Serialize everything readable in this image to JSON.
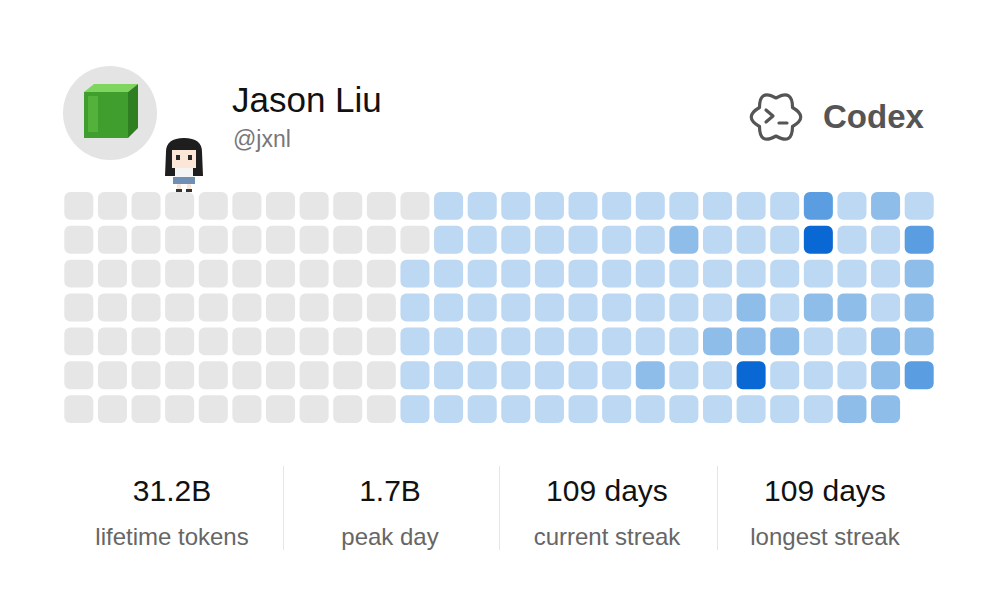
{
  "profile": {
    "name": "Jason Liu",
    "handle": "@jxnl"
  },
  "brand": "Codex",
  "chart_data": {
    "type": "heatmap",
    "tick_labels": false,
    "grid": false,
    "cells": [
      [
        0,
        0,
        0,
        0,
        0,
        0,
        0,
        0,
        0,
        0,
        0,
        0.2,
        0.2,
        0.2,
        0.2,
        0.2,
        0.2,
        0.2,
        0.2,
        0.2,
        0.2,
        0.2,
        0.9,
        0.2,
        0.5,
        0.2
      ],
      [
        0,
        0,
        0,
        0,
        0,
        0,
        0,
        0,
        0,
        0,
        0,
        0.2,
        0.2,
        0.2,
        0.2,
        0.2,
        0.2,
        0.2,
        0.5,
        0.2,
        0.2,
        0.2,
        1.7,
        0.2,
        0.2,
        0.9
      ],
      [
        0,
        0,
        0,
        0,
        0,
        0,
        0,
        0,
        0,
        0,
        0.2,
        0.2,
        0.2,
        0.2,
        0.2,
        0.2,
        0.2,
        0.2,
        0.2,
        0.2,
        0.2,
        0.2,
        0.2,
        0.2,
        0.2,
        0.5
      ],
      [
        0,
        0,
        0,
        0,
        0,
        0,
        0,
        0,
        0,
        0,
        0.2,
        0.2,
        0.2,
        0.2,
        0.2,
        0.2,
        0.2,
        0.2,
        0.2,
        0.2,
        0.5,
        0.2,
        0.5,
        0.5,
        0.2,
        0.5
      ],
      [
        0,
        0,
        0,
        0,
        0,
        0,
        0,
        0,
        0,
        0,
        0.2,
        0.2,
        0.2,
        0.2,
        0.2,
        0.2,
        0.2,
        0.2,
        0.2,
        0.5,
        0.5,
        0.5,
        0.2,
        0.2,
        0.5,
        0.5
      ],
      [
        0,
        0,
        0,
        0,
        0,
        0,
        0,
        0,
        0,
        0,
        0.2,
        0.2,
        0.2,
        0.2,
        0.2,
        0.2,
        0.2,
        0.5,
        0.2,
        0.2,
        1.6,
        0.2,
        0.2,
        0.2,
        0.5,
        0.9
      ],
      [
        0,
        0,
        0,
        0,
        0,
        0,
        0,
        0,
        0,
        0,
        0.2,
        0.2,
        0.2,
        0.2,
        0.2,
        0.2,
        0.2,
        0.2,
        0.2,
        0.2,
        0.2,
        0.2,
        0.2,
        0.5,
        0.5,
        null
      ]
    ]
  },
  "stats": [
    {
      "value": "31.2B",
      "label": "lifetime tokens"
    },
    {
      "value": "1.7B",
      "label": "peak day"
    },
    {
      "value": "109 days",
      "label": "current streak"
    },
    {
      "value": "109 days",
      "label": "longest streak"
    }
  ]
}
